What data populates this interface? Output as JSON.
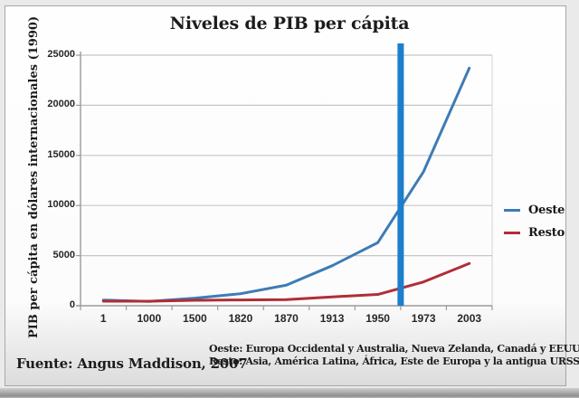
{
  "title": "Niveles de PIB per cápita",
  "source": "Fuente: Angus Maddison, 2007",
  "notes": [
    "Oeste: Europa Occidental y Australia, Nueva Zelanda, Canadá y EEUU",
    "Resto: Asia, América Latina, África, Este de Europa y la antigua URSS"
  ],
  "legend": [
    {
      "label": "Oeste",
      "color": "#3e7bb6"
    },
    {
      "label": "Resto",
      "color": "#b02e36"
    }
  ],
  "colors": {
    "oeste_line": "#3e7bb6",
    "resto_line": "#b02e36",
    "highlight_bar": "#1b7fcb",
    "gridline": "#c6c6c6",
    "axis": "#9a9a9a",
    "text": "#1c1c1c"
  },
  "chart_data": {
    "type": "line",
    "title": "Niveles de PIB per cápita",
    "xlabel": "",
    "ylabel": "PIB per cápita en dólares internacionales (1990)",
    "categories": [
      "1",
      "1000",
      "1500",
      "1820",
      "1870",
      "1913",
      "1950",
      "1973",
      "2003"
    ],
    "series": [
      {
        "name": "Oeste",
        "color": "#3e7bb6",
        "values": [
          569,
          426,
          753,
          1202,
          2050,
          3988,
          6297,
          13379,
          23710
        ]
      },
      {
        "name": "Resto",
        "color": "#b02e36",
        "values": [
          453,
          451,
          538,
          580,
          609,
          884,
          1126,
          2379,
          4217
        ]
      }
    ],
    "ylim": [
      0,
      25000
    ],
    "yticks": [
      0,
      5000,
      10000,
      15000,
      20000,
      25000
    ],
    "grid": true,
    "legend_position": "right",
    "annotation": {
      "type": "vertical-bar",
      "between": [
        "1950",
        "1973"
      ],
      "color": "#1b7fcb"
    }
  }
}
